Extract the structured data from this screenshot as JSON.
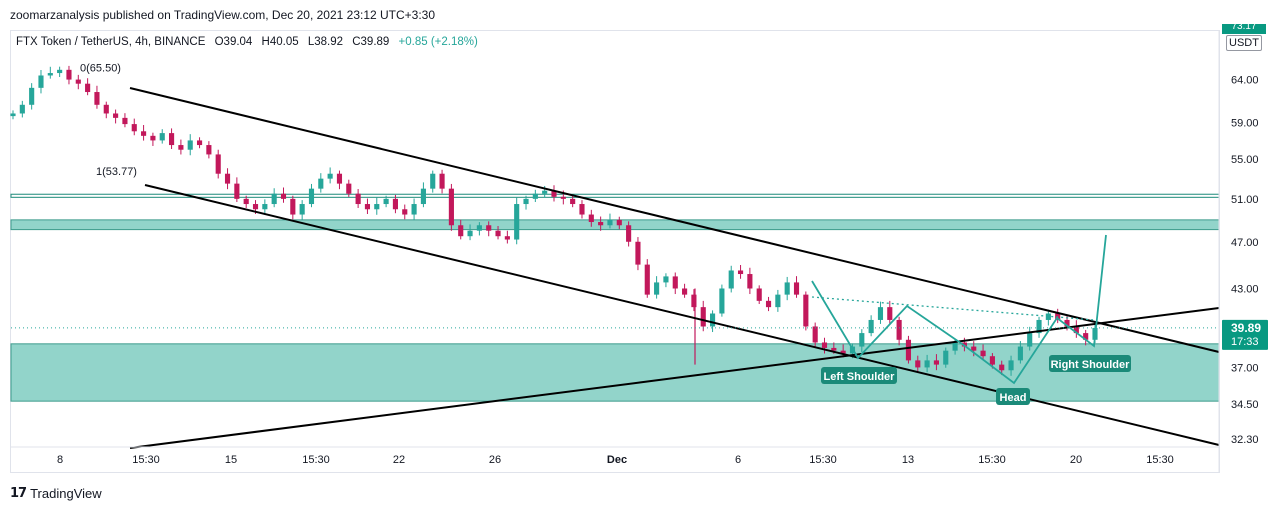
{
  "header": {
    "publisher": "zoomarzanalysis published on TradingView.com, Dec 20, 2021 23:12 UTC+3:30"
  },
  "symbol": {
    "name": "FTX Token / TetherUS, 4h, BINANCE",
    "open": "O39.04",
    "high": "H40.05",
    "low": "L38.92",
    "close": "C39.89",
    "change": "+0.85 (+2.18%)"
  },
  "price_axis": {
    "currency": "USDT",
    "top_label": "73.17",
    "current_price": "39.89",
    "countdown": "17:33"
  },
  "colors": {
    "up": "#26a69a",
    "down": "#c2185b",
    "zone_fill": "#7fcdc1",
    "pattern": "#26a69a",
    "trendline": "#000000"
  },
  "chart_data": {
    "type": "candlestick",
    "ylim": [
      31.8,
      70.2
    ],
    "scale": "log",
    "y_ticks": [
      "64.00",
      "59.00",
      "55.00",
      "51.00",
      "47.00",
      "43.00",
      "37.00",
      "34.50",
      "32.30"
    ],
    "x_ticks": [
      "8",
      "15:30",
      "15",
      "15:30",
      "22",
      "26",
      "Dec",
      "6",
      "15:30",
      "13",
      "15:30",
      "20",
      "15:30"
    ],
    "fib_labels": [
      {
        "text": "0(65.50)",
        "value": 65.5
      },
      {
        "text": "1(53.77)",
        "value": 53.77
      }
    ],
    "zones": [
      {
        "from": 48.1,
        "to": 49.0
      },
      {
        "from": 34.7,
        "to": 38.7
      },
      {
        "from": 51.15,
        "to": 51.45
      }
    ],
    "pattern_labels": [
      "Left Shoulder",
      "Head",
      "Right Shoulder"
    ],
    "close_path": [
      60,
      61,
      63,
      64.5,
      64.8,
      65.2,
      64.0,
      63.5,
      62.5,
      61.0,
      60.0,
      59.5,
      58.8,
      58.0,
      57.5,
      57.0,
      57.8,
      56.5,
      56.0,
      57.0,
      56.5,
      55.5,
      53.5,
      52.5,
      51.0,
      50.5,
      50.0,
      50.5,
      51.5,
      51.0,
      49.5,
      50.5,
      52.0,
      53.0,
      53.5,
      52.5,
      51.5,
      50.5,
      50.0,
      50.5,
      51.0,
      50.0,
      49.5,
      50.5,
      52.0,
      53.5,
      52.0,
      48.5,
      47.5,
      48.0,
      48.5,
      48.0,
      47.5,
      47.2,
      50.5,
      51.0,
      51.5,
      51.8,
      51.2,
      51.0,
      50.5,
      49.5,
      48.8,
      48.5,
      49.0,
      48.5,
      47.0,
      45.0,
      42.5,
      43.5,
      44.0,
      43.0,
      42.5,
      41.5,
      40.0,
      41.0,
      43.0,
      44.5,
      44.2,
      43.0,
      42.0,
      41.5,
      42.5,
      43.5,
      42.5,
      40.0,
      38.8,
      38.4,
      38.2,
      38.0,
      38.5,
      39.5,
      40.5,
      41.5,
      40.5,
      39.0,
      37.5,
      37.0,
      37.5,
      37.2,
      38.2,
      38.8,
      38.5,
      38.2,
      37.8,
      37.2,
      36.8,
      37.5,
      38.5,
      39.5,
      40.5,
      41.0,
      40.5,
      40.0,
      39.5,
      39.0,
      39.89
    ]
  }
}
